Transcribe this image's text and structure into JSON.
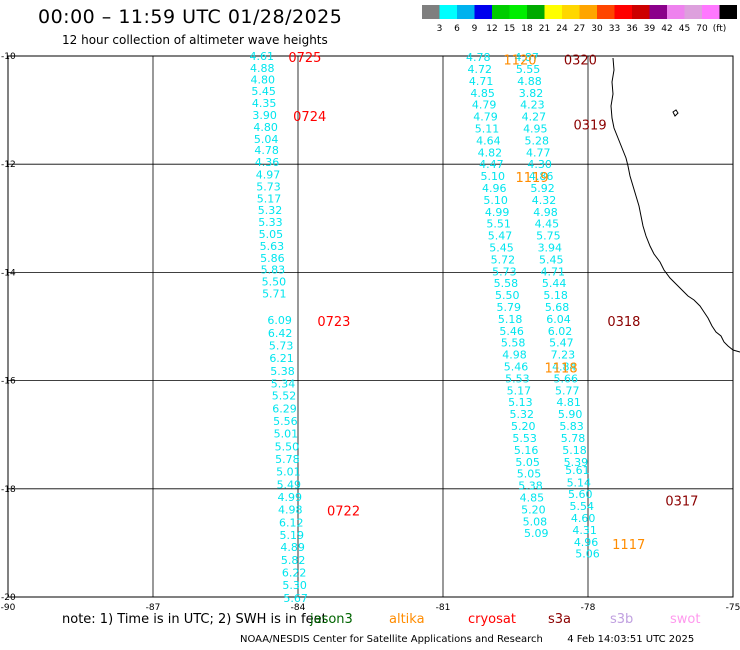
{
  "header": {
    "title": "00:00 – 11:59 UTC 01/28/2025",
    "subtitle": "12 hour collection of altimeter wave heights"
  },
  "scale": {
    "colors": [
      "#7f7f7f",
      "#00ffff",
      "#00b2ee",
      "#0000ee",
      "#00cd00",
      "#00ee00",
      "#00aa00",
      "#ffff00",
      "#ffd700",
      "#ffa500",
      "#ff4500",
      "#ff0000",
      "#cd0000",
      "#8b008b",
      "#ee82ee",
      "#dda0dd",
      "#ff77ff",
      "#000000"
    ],
    "labels": [
      "3",
      "6",
      "9",
      "12",
      "15",
      "18",
      "21",
      "24",
      "27",
      "30",
      "33",
      "36",
      "39",
      "42",
      "45",
      "70",
      "(ft)"
    ]
  },
  "axes": {
    "lon_ticks": [
      "-90",
      "-87",
      "-84",
      "-81",
      "-78",
      "-75"
    ],
    "lat_ticks": [
      "-10",
      "-12",
      "-14",
      "-16",
      "-18",
      "-20"
    ]
  },
  "tracks": [
    {
      "id": "track-a",
      "points": [
        {
          "lon": -84.75,
          "lat": -10.0,
          "v": "4.61"
        },
        {
          "lon": -84.74,
          "lat": -10.22,
          "v": "4.88"
        },
        {
          "lon": -84.73,
          "lat": -10.43,
          "v": "4.80"
        },
        {
          "lon": -84.71,
          "lat": -10.65,
          "v": "5.45"
        },
        {
          "lon": -84.7,
          "lat": -10.87,
          "v": "4.35"
        },
        {
          "lon": -84.69,
          "lat": -11.09,
          "v": "3.90"
        },
        {
          "lon": -84.67,
          "lat": -11.31,
          "v": "4.80"
        },
        {
          "lon": -84.66,
          "lat": -11.53,
          "v": "5.04"
        },
        {
          "lon": -84.65,
          "lat": -11.74,
          "v": "4.78"
        },
        {
          "lon": -84.64,
          "lat": -11.96,
          "v": "4.36"
        },
        {
          "lon": -84.62,
          "lat": -12.19,
          "v": "4.97"
        },
        {
          "lon": -84.61,
          "lat": -12.41,
          "v": "5.73"
        },
        {
          "lon": -84.6,
          "lat": -12.63,
          "v": "5.17"
        },
        {
          "lon": -84.58,
          "lat": -12.85,
          "v": "5.32"
        },
        {
          "lon": -84.57,
          "lat": -13.07,
          "v": "5.33"
        },
        {
          "lon": -84.56,
          "lat": -13.29,
          "v": "5.05"
        },
        {
          "lon": -84.54,
          "lat": -13.51,
          "v": "5.63"
        },
        {
          "lon": -84.53,
          "lat": -13.73,
          "v": "5.86"
        },
        {
          "lon": -84.52,
          "lat": -13.95,
          "v": "5.83"
        },
        {
          "lon": -84.5,
          "lat": -14.17,
          "v": "5.50"
        },
        {
          "lon": -84.49,
          "lat": -14.39,
          "v": "5.71"
        },
        {
          "lon": -84.38,
          "lat": -14.88,
          "v": "6.09"
        },
        {
          "lon": -84.37,
          "lat": -15.12,
          "v": "6.42"
        },
        {
          "lon": -84.35,
          "lat": -15.35,
          "v": "5.73"
        },
        {
          "lon": -84.34,
          "lat": -15.58,
          "v": "6.21"
        },
        {
          "lon": -84.32,
          "lat": -15.82,
          "v": "5.38"
        },
        {
          "lon": -84.31,
          "lat": -16.05,
          "v": "5.34"
        },
        {
          "lon": -84.29,
          "lat": -16.28,
          "v": "5.52"
        },
        {
          "lon": -84.28,
          "lat": -16.52,
          "v": "6.29"
        },
        {
          "lon": -84.26,
          "lat": -16.75,
          "v": "5.56"
        },
        {
          "lon": -84.25,
          "lat": -16.98,
          "v": "5.01"
        },
        {
          "lon": -84.23,
          "lat": -17.22,
          "v": "5.50"
        },
        {
          "lon": -84.22,
          "lat": -17.45,
          "v": "5.78"
        },
        {
          "lon": -84.2,
          "lat": -17.68,
          "v": "5.01"
        },
        {
          "lon": -84.19,
          "lat": -17.92,
          "v": "5.49"
        },
        {
          "lon": -84.17,
          "lat": -18.15,
          "v": "4.99"
        },
        {
          "lon": -84.16,
          "lat": -18.38,
          "v": "4.98"
        },
        {
          "lon": -84.14,
          "lat": -18.62,
          "v": "6.12"
        },
        {
          "lon": -84.13,
          "lat": -18.85,
          "v": "5.19"
        },
        {
          "lon": -84.11,
          "lat": -19.08,
          "v": "4.89"
        },
        {
          "lon": -84.1,
          "lat": -19.32,
          "v": "5.82"
        },
        {
          "lon": -84.08,
          "lat": -19.55,
          "v": "6.22"
        },
        {
          "lon": -84.07,
          "lat": -19.78,
          "v": "5.30"
        },
        {
          "lon": -84.05,
          "lat": -20.02,
          "v": "5.67"
        }
      ]
    },
    {
      "id": "track-b",
      "points": [
        {
          "lon": -80.27,
          "lat": -10.02,
          "v": "4.78"
        },
        {
          "lon": -80.24,
          "lat": -10.24,
          "v": "4.72"
        },
        {
          "lon": -80.21,
          "lat": -10.46,
          "v": "4.71"
        },
        {
          "lon": -80.18,
          "lat": -10.68,
          "v": "4.85"
        },
        {
          "lon": -80.15,
          "lat": -10.9,
          "v": "4.79"
        },
        {
          "lon": -80.12,
          "lat": -11.12,
          "v": "4.79"
        },
        {
          "lon": -80.09,
          "lat": -11.34,
          "v": "5.11"
        },
        {
          "lon": -80.06,
          "lat": -11.56,
          "v": "4.64"
        },
        {
          "lon": -80.03,
          "lat": -11.78,
          "v": "4.82"
        },
        {
          "lon": -80.0,
          "lat": -12.0,
          "v": "4.47"
        },
        {
          "lon": -79.97,
          "lat": -12.22,
          "v": "5.10"
        },
        {
          "lon": -79.94,
          "lat": -12.44,
          "v": "4.96"
        },
        {
          "lon": -79.91,
          "lat": -12.66,
          "v": "5.10"
        },
        {
          "lon": -79.88,
          "lat": -12.88,
          "v": "4.99"
        },
        {
          "lon": -79.85,
          "lat": -13.1,
          "v": "5.51"
        },
        {
          "lon": -79.82,
          "lat": -13.32,
          "v": "5.47"
        },
        {
          "lon": -79.79,
          "lat": -13.54,
          "v": "5.45"
        },
        {
          "lon": -79.76,
          "lat": -13.76,
          "v": "5.72"
        },
        {
          "lon": -79.73,
          "lat": -13.98,
          "v": "5.73"
        },
        {
          "lon": -79.7,
          "lat": -14.2,
          "v": "5.58"
        },
        {
          "lon": -79.67,
          "lat": -14.42,
          "v": "5.50"
        },
        {
          "lon": -79.64,
          "lat": -14.64,
          "v": "5.79"
        },
        {
          "lon": -79.61,
          "lat": -14.86,
          "v": "5.18"
        },
        {
          "lon": -79.58,
          "lat": -15.08,
          "v": "5.46"
        },
        {
          "lon": -79.55,
          "lat": -15.3,
          "v": "5.58"
        },
        {
          "lon": -79.52,
          "lat": -15.52,
          "v": "4.98"
        },
        {
          "lon": -79.49,
          "lat": -15.74,
          "v": "5.46"
        },
        {
          "lon": -79.46,
          "lat": -15.96,
          "v": "5.53"
        },
        {
          "lon": -79.43,
          "lat": -16.18,
          "v": "5.17"
        },
        {
          "lon": -79.4,
          "lat": -16.4,
          "v": "5.13"
        },
        {
          "lon": -79.37,
          "lat": -16.62,
          "v": "5.32"
        },
        {
          "lon": -79.34,
          "lat": -16.84,
          "v": "5.20"
        },
        {
          "lon": -79.31,
          "lat": -17.06,
          "v": "5.53"
        },
        {
          "lon": -79.28,
          "lat": -17.28,
          "v": "5.16"
        },
        {
          "lon": -79.25,
          "lat": -17.5,
          "v": "5.05"
        },
        {
          "lon": -79.22,
          "lat": -17.72,
          "v": "5.05"
        },
        {
          "lon": -79.19,
          "lat": -17.94,
          "v": "5.38"
        },
        {
          "lon": -79.16,
          "lat": -18.16,
          "v": "4.85"
        },
        {
          "lon": -79.13,
          "lat": -18.38,
          "v": "5.20"
        },
        {
          "lon": -79.1,
          "lat": -18.6,
          "v": "5.08"
        },
        {
          "lon": -79.07,
          "lat": -18.82,
          "v": "5.09"
        }
      ]
    },
    {
      "id": "track-c",
      "points": [
        {
          "lon": -79.27,
          "lat": -10.02,
          "v": "4.87"
        },
        {
          "lon": -79.24,
          "lat": -10.24,
          "v": "5.55"
        },
        {
          "lon": -79.21,
          "lat": -10.46,
          "v": "4.88"
        },
        {
          "lon": -79.18,
          "lat": -10.68,
          "v": "3.82"
        },
        {
          "lon": -79.15,
          "lat": -10.9,
          "v": "4.23"
        },
        {
          "lon": -79.12,
          "lat": -11.12,
          "v": "4.27"
        },
        {
          "lon": -79.09,
          "lat": -11.34,
          "v": "4.95"
        },
        {
          "lon": -79.06,
          "lat": -11.56,
          "v": "5.28"
        },
        {
          "lon": -79.03,
          "lat": -11.78,
          "v": "4.77"
        },
        {
          "lon": -79.0,
          "lat": -12.0,
          "v": "4.30"
        },
        {
          "lon": -78.97,
          "lat": -12.22,
          "v": "4.86"
        },
        {
          "lon": -78.94,
          "lat": -12.44,
          "v": "5.92"
        },
        {
          "lon": -78.91,
          "lat": -12.66,
          "v": "4.32"
        },
        {
          "lon": -78.88,
          "lat": -12.88,
          "v": "4.98"
        },
        {
          "lon": -78.85,
          "lat": -13.1,
          "v": "4.45"
        },
        {
          "lon": -78.82,
          "lat": -13.32,
          "v": "5.75"
        },
        {
          "lon": -78.79,
          "lat": -13.54,
          "v": "3.94"
        },
        {
          "lon": -78.76,
          "lat": -13.76,
          "v": "5.45"
        },
        {
          "lon": -78.73,
          "lat": -13.98,
          "v": "4.71"
        },
        {
          "lon": -78.7,
          "lat": -14.2,
          "v": "5.44"
        },
        {
          "lon": -78.67,
          "lat": -14.42,
          "v": "5.18"
        },
        {
          "lon": -78.64,
          "lat": -14.64,
          "v": "5.68"
        },
        {
          "lon": -78.61,
          "lat": -14.86,
          "v": "6.04"
        },
        {
          "lon": -78.58,
          "lat": -15.08,
          "v": "6.02"
        },
        {
          "lon": -78.55,
          "lat": -15.3,
          "v": "5.47"
        },
        {
          "lon": -78.52,
          "lat": -15.52,
          "v": "7.23"
        },
        {
          "lon": -78.49,
          "lat": -15.74,
          "v": "4.84"
        },
        {
          "lon": -78.46,
          "lat": -15.96,
          "v": "5.66"
        },
        {
          "lon": -78.43,
          "lat": -16.18,
          "v": "5.77"
        },
        {
          "lon": -78.4,
          "lat": -16.4,
          "v": "4.81"
        },
        {
          "lon": -78.37,
          "lat": -16.62,
          "v": "5.90"
        },
        {
          "lon": -78.34,
          "lat": -16.84,
          "v": "5.83"
        },
        {
          "lon": -78.31,
          "lat": -17.06,
          "v": "5.78"
        },
        {
          "lon": -78.28,
          "lat": -17.28,
          "v": "5.18"
        },
        {
          "lon": -78.25,
          "lat": -17.5,
          "v": "5.39"
        },
        {
          "lon": -78.22,
          "lat": -17.65,
          "v": "5.61"
        },
        {
          "lon": -78.19,
          "lat": -17.88,
          "v": "5.14"
        },
        {
          "lon": -78.16,
          "lat": -18.1,
          "v": "5.60"
        },
        {
          "lon": -78.13,
          "lat": -18.32,
          "v": "5.54"
        },
        {
          "lon": -78.1,
          "lat": -18.54,
          "v": "4.60"
        },
        {
          "lon": -78.07,
          "lat": -18.76,
          "v": "4.31"
        },
        {
          "lon": -78.04,
          "lat": -18.98,
          "v": "4.96"
        },
        {
          "lon": -78.01,
          "lat": -19.2,
          "v": "5.06"
        }
      ]
    }
  ],
  "time_labels": [
    {
      "text": "0725",
      "lon": -84.2,
      "lat": -10.0,
      "color": "#ff0000"
    },
    {
      "text": "0724",
      "lon": -84.1,
      "lat": -11.09,
      "color": "#ff0000"
    },
    {
      "text": "0723",
      "lon": -83.6,
      "lat": -14.88,
      "color": "#ff0000"
    },
    {
      "text": "0722",
      "lon": -83.4,
      "lat": -18.38,
      "color": "#ff0000"
    },
    {
      "text": "1120",
      "lon": -79.75,
      "lat": -10.05,
      "color": "#ff8c00"
    },
    {
      "text": "1119",
      "lon": -79.5,
      "lat": -12.22,
      "color": "#ff8c00"
    },
    {
      "text": "1118",
      "lon": -78.9,
      "lat": -15.74,
      "color": "#ff8c00"
    },
    {
      "text": "1117",
      "lon": -77.5,
      "lat": -19.0,
      "color": "#ff8c00"
    },
    {
      "text": "0320",
      "lon": -78.5,
      "lat": -10.05,
      "color": "#8b0000"
    },
    {
      "text": "0319",
      "lon": -78.3,
      "lat": -11.25,
      "color": "#8b0000"
    },
    {
      "text": "0318",
      "lon": -77.6,
      "lat": -14.88,
      "color": "#8b0000"
    },
    {
      "text": "0317",
      "lon": -76.4,
      "lat": -18.2,
      "color": "#8b0000"
    }
  ],
  "note": {
    "prefix": "note:  1) Time is in UTC; 2) SWH is in feet",
    "missions": [
      {
        "name": "jason3",
        "color": "#006400"
      },
      {
        "name": "altika",
        "color": "#ff8c00"
      },
      {
        "name": "cryosat",
        "color": "#ff0000"
      },
      {
        "name": "s3a",
        "color": "#8b0000"
      },
      {
        "name": "s3b",
        "color": "#c0a0e0"
      },
      {
        "name": "swot",
        "color": "#ff99ee"
      }
    ]
  },
  "footer": {
    "credit": "NOAA/NESDIS Center for Satellite Applications and Research",
    "timestamp": "4 Feb 14:03:51 UTC 2025"
  },
  "colors": {
    "track_text": "#00e5ee",
    "coast": "#000000"
  }
}
